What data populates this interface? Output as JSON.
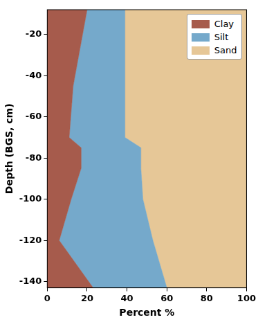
{
  "chart_data": {
    "type": "area",
    "orientation": "horizontal",
    "stacked": true,
    "xlabel": "Percent %",
    "ylabel": "Depth (BGS, cm)",
    "y": [
      -8,
      -45,
      -70,
      -75,
      -85,
      -100,
      -120,
      -143
    ],
    "series": [
      {
        "name": "Clay",
        "color": "#a65b4c",
        "values": [
          20,
          13,
          11,
          17,
          17,
          12,
          6,
          23
        ]
      },
      {
        "name": "Silt",
        "color": "#75a9cb",
        "values": [
          19,
          26,
          28,
          30,
          30,
          36,
          47,
          37
        ]
      },
      {
        "name": "Sand",
        "color": "#e6c797",
        "values": [
          61,
          61,
          61,
          53,
          53,
          52,
          47,
          40
        ]
      }
    ],
    "xlim": [
      0,
      100
    ],
    "xticks": [
      0,
      20,
      40,
      60,
      80,
      100
    ],
    "ylim": [
      -143,
      -8
    ],
    "yticks": [
      -20,
      -40,
      -60,
      -80,
      -100,
      -120,
      -140
    ],
    "grid": false,
    "legend": "upper right"
  }
}
